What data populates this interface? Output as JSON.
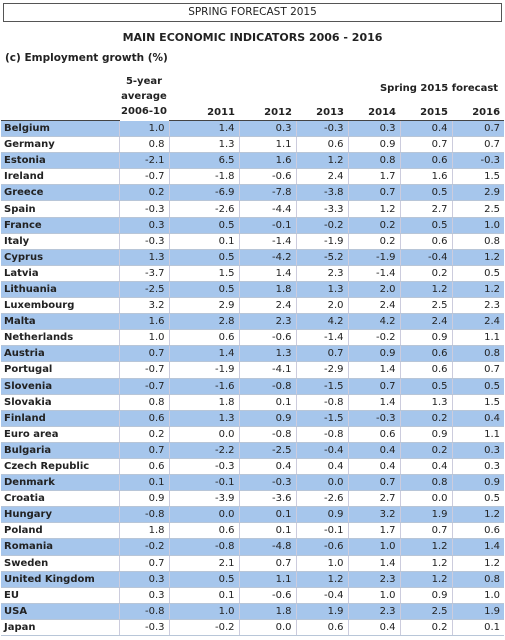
{
  "header": {
    "box_title": "SPRING FORECAST 2015",
    "title": "MAIN ECONOMIC INDICATORS 2006 - 2016",
    "subtitle": "(c) Employment growth (%)"
  },
  "table": {
    "col_headers": [
      "5-year average 2006-10",
      "2011",
      "2012",
      "2013",
      "2014",
      "2015",
      "2016"
    ],
    "group_header": "Spring 2015 forecast",
    "rows": [
      [
        "Belgium",
        "1.0",
        "1.4",
        "0.3",
        "-0.3",
        "0.3",
        "0.4",
        "0.7"
      ],
      [
        "Germany",
        "0.8",
        "1.3",
        "1.1",
        "0.6",
        "0.9",
        "0.7",
        "0.7"
      ],
      [
        "Estonia",
        "-2.1",
        "6.5",
        "1.6",
        "1.2",
        "0.8",
        "0.6",
        "-0.3"
      ],
      [
        "Ireland",
        "-0.7",
        "-1.8",
        "-0.6",
        "2.4",
        "1.7",
        "1.6",
        "1.5"
      ],
      [
        "Greece",
        "0.2",
        "-6.9",
        "-7.8",
        "-3.8",
        "0.7",
        "0.5",
        "2.9"
      ],
      [
        "Spain",
        "-0.3",
        "-2.6",
        "-4.4",
        "-3.3",
        "1.2",
        "2.7",
        "2.5"
      ],
      [
        "France",
        "0.3",
        "0.5",
        "-0.1",
        "-0.2",
        "0.2",
        "0.5",
        "1.0"
      ],
      [
        "Italy",
        "-0.3",
        "0.1",
        "-1.4",
        "-1.9",
        "0.2",
        "0.6",
        "0.8"
      ],
      [
        "Cyprus",
        "1.3",
        "0.5",
        "-4.2",
        "-5.2",
        "-1.9",
        "-0.4",
        "1.2"
      ],
      [
        "Latvia",
        "-3.7",
        "1.5",
        "1.4",
        "2.3",
        "-1.4",
        "0.2",
        "0.5"
      ],
      [
        "Lithuania",
        "-2.5",
        "0.5",
        "1.8",
        "1.3",
        "2.0",
        "1.2",
        "1.2"
      ],
      [
        "Luxembourg",
        "3.2",
        "2.9",
        "2.4",
        "2.0",
        "2.4",
        "2.5",
        "2.3"
      ],
      [
        "Malta",
        "1.6",
        "2.8",
        "2.3",
        "4.2",
        "4.2",
        "2.4",
        "2.4"
      ],
      [
        "Netherlands",
        "1.0",
        "0.6",
        "-0.6",
        "-1.4",
        "-0.2",
        "0.9",
        "1.1"
      ],
      [
        "Austria",
        "0.7",
        "1.4",
        "1.3",
        "0.7",
        "0.9",
        "0.6",
        "0.8"
      ],
      [
        "Portugal",
        "-0.7",
        "-1.9",
        "-4.1",
        "-2.9",
        "1.4",
        "0.6",
        "0.7"
      ],
      [
        "Slovenia",
        "-0.7",
        "-1.6",
        "-0.8",
        "-1.5",
        "0.7",
        "0.5",
        "0.5"
      ],
      [
        "Slovakia",
        "0.8",
        "1.8",
        "0.1",
        "-0.8",
        "1.4",
        "1.3",
        "1.5"
      ],
      [
        "Finland",
        "0.6",
        "1.3",
        "0.9",
        "-1.5",
        "-0.3",
        "0.2",
        "0.4"
      ],
      [
        "Euro area",
        "0.2",
        "0.0",
        "-0.8",
        "-0.8",
        "0.6",
        "0.9",
        "1.1"
      ],
      [
        "Bulgaria",
        "0.7",
        "-2.2",
        "-2.5",
        "-0.4",
        "0.4",
        "0.2",
        "0.3"
      ],
      [
        "Czech Republic",
        "0.6",
        "-0.3",
        "0.4",
        "0.4",
        "0.4",
        "0.4",
        "0.3"
      ],
      [
        "Denmark",
        "0.1",
        "-0.1",
        "-0.3",
        "0.0",
        "0.7",
        "0.8",
        "0.9"
      ],
      [
        "Croatia",
        "0.9",
        "-3.9",
        "-3.6",
        "-2.6",
        "2.7",
        "0.0",
        "0.5"
      ],
      [
        "Hungary",
        "-0.8",
        "0.0",
        "0.1",
        "0.9",
        "3.2",
        "1.9",
        "1.2"
      ],
      [
        "Poland",
        "1.8",
        "0.6",
        "0.1",
        "-0.1",
        "1.7",
        "0.7",
        "0.6"
      ],
      [
        "Romania",
        "-0.2",
        "-0.8",
        "-4.8",
        "-0.6",
        "1.0",
        "1.2",
        "1.4"
      ],
      [
        "Sweden",
        "0.7",
        "2.1",
        "0.7",
        "1.0",
        "1.4",
        "1.2",
        "1.2"
      ],
      [
        "United Kingdom",
        "0.3",
        "0.5",
        "1.1",
        "1.2",
        "2.3",
        "1.2",
        "0.8"
      ],
      [
        "EU",
        "0.3",
        "0.1",
        "-0.6",
        "-0.4",
        "1.0",
        "0.9",
        "1.0"
      ],
      [
        "USA",
        "-0.8",
        "1.0",
        "1.8",
        "1.9",
        "2.3",
        "2.5",
        "1.9"
      ],
      [
        "Japan",
        "-0.3",
        "-0.2",
        "0.0",
        "0.6",
        "0.4",
        "0.2",
        "0.1"
      ]
    ]
  }
}
